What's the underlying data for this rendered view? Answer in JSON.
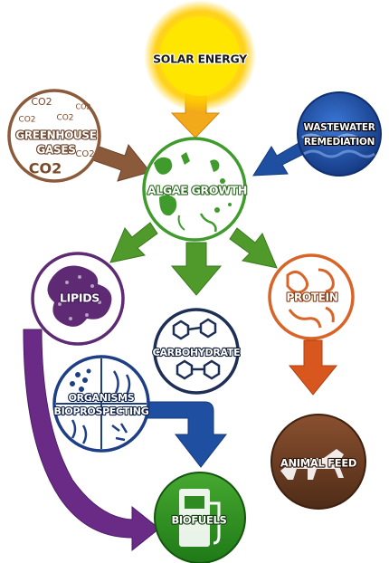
{
  "nodes": {
    "solar": {
      "label": "SOLAR ENERGY",
      "color": "#f5c400"
    },
    "greenhouse": {
      "line1": "GREENHOUSE",
      "line2": "GASES",
      "color": "#8a5a3b"
    },
    "wastewater": {
      "line1": "WASTEWATER",
      "line2": "REMEDIATION",
      "color": "#1f4fa0"
    },
    "algae": {
      "label": "ALGAE GROWTH",
      "color": "#3e9b2c"
    },
    "lipids": {
      "label": "LIPIDS",
      "color": "#5d2a73"
    },
    "protein": {
      "label": "PROTEIN",
      "color": "#d86428"
    },
    "carbohydrate": {
      "label": "CARBOHYDRATE",
      "color": "#1e2f55"
    },
    "organisms": {
      "line1": "ORGANISMS",
      "line2": "BIOPROSPECTING",
      "color": "#1d3f85"
    },
    "animal_feed": {
      "label": "ANIMAL FEED",
      "color": "#6b3e26"
    },
    "biofuels": {
      "label": "BIOFUELS",
      "color": "#2e8b22"
    }
  },
  "greenhouse_co2_text": [
    "CO2",
    "CO2",
    "CO2",
    "CO2",
    "CO2",
    "CO2"
  ],
  "arrow_colors": {
    "solar": "#f2a91a",
    "greenhouse": "#8a5a3b",
    "wastewater": "#1f4fa0",
    "algae": "#4f9a2a",
    "protein": "#d8571e",
    "organisms": "#1f4fa0",
    "lipids": "#6a2b86"
  }
}
